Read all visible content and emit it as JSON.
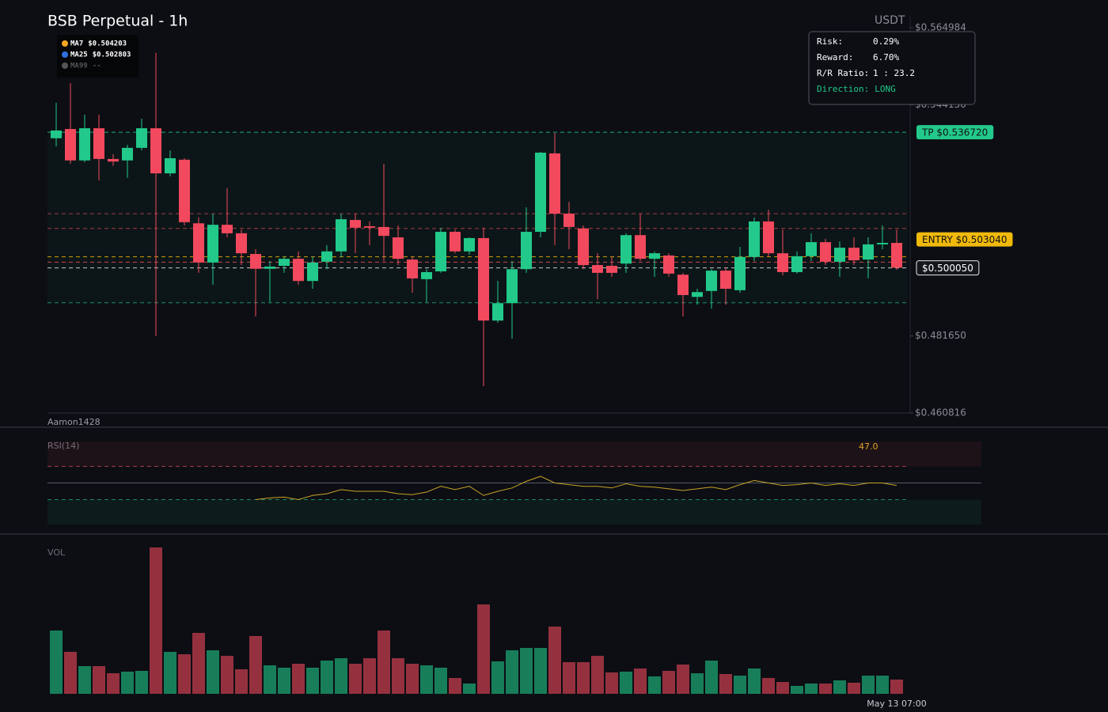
{
  "chart_data": [
    {
      "type": "candlestick",
      "title": "BSB Perpetual - 1h",
      "unit": "USDT",
      "watermark": "Aamon1428",
      "up_color": "#22c98a",
      "down_color": "#f2495e",
      "ylim": [
        0.460816,
        0.5682
      ],
      "yticks": [
        {
          "value": 0.564984,
          "label": "$0.564984"
        },
        {
          "value": 0.54415,
          "label": "$0.544150"
        },
        {
          "value": 0.48165,
          "label": "$0.481650"
        },
        {
          "value": 0.460816,
          "label": "$0.460816"
        }
      ],
      "grid": false,
      "open": [
        0.5351,
        0.5376,
        0.5291,
        0.5378,
        0.5295,
        0.5291,
        0.5325,
        0.5378,
        0.5256,
        0.5293,
        0.5121,
        0.5015,
        0.5117,
        0.5094,
        0.5038,
        0.4998,
        0.5006,
        0.5025,
        0.4965,
        0.5017,
        0.5045,
        0.513,
        0.5113,
        0.5111,
        0.5083,
        0.5023,
        0.497,
        0.4991,
        0.5098,
        0.5045,
        0.5081,
        0.4858,
        0.4905,
        0.4997,
        0.5098,
        0.531,
        0.5147,
        0.5107,
        0.5008,
        0.5006,
        0.5012,
        0.5089,
        0.5025,
        0.5034,
        0.4982,
        0.4922,
        0.4938,
        0.4993,
        0.494,
        0.503,
        0.5126,
        0.504,
        0.4989,
        0.5032,
        0.507,
        0.5017,
        0.5055,
        0.5023,
        0.5064,
        0.5068
      ],
      "high": [
        0.5447,
        0.55,
        0.5415,
        0.5415,
        0.5308,
        0.5333,
        0.5404,
        0.5582,
        0.5318,
        0.5297,
        0.5137,
        0.5147,
        0.5216,
        0.5104,
        0.5051,
        0.5019,
        0.503,
        0.5045,
        0.503,
        0.5062,
        0.5147,
        0.5147,
        0.5126,
        0.5282,
        0.5115,
        0.503,
        0.4997,
        0.5109,
        0.5104,
        0.5083,
        0.5109,
        0.4965,
        0.5019,
        0.5164,
        0.5314,
        0.5365,
        0.5179,
        0.5115,
        0.504,
        0.503,
        0.5094,
        0.5147,
        0.5045,
        0.504,
        0.4987,
        0.4944,
        0.4997,
        0.5002,
        0.5057,
        0.5137,
        0.5158,
        0.5104,
        0.5045,
        0.5094,
        0.5079,
        0.5072,
        0.5083,
        0.5083,
        0.5115,
        0.5104
      ],
      "low": [
        0.5329,
        0.5282,
        0.5286,
        0.5237,
        0.5276,
        0.5244,
        0.5318,
        0.4816,
        0.5248,
        0.5115,
        0.4987,
        0.4955,
        0.5083,
        0.5008,
        0.4869,
        0.4908,
        0.4987,
        0.4955,
        0.4944,
        0.4997,
        0.503,
        0.504,
        0.5062,
        0.5019,
        0.5008,
        0.4933,
        0.4908,
        0.4987,
        0.504,
        0.5036,
        0.4681,
        0.4852,
        0.4809,
        0.4987,
        0.5083,
        0.5062,
        0.5051,
        0.4997,
        0.4916,
        0.4976,
        0.4987,
        0.5019,
        0.4976,
        0.4976,
        0.4869,
        0.4901,
        0.489,
        0.4901,
        0.4933,
        0.5019,
        0.503,
        0.498,
        0.4985,
        0.5019,
        0.5008,
        0.4976,
        0.5008,
        0.4972,
        0.5051,
        0.4995
      ],
      "close": [
        0.5372,
        0.5291,
        0.5378,
        0.5295,
        0.5288,
        0.5325,
        0.5378,
        0.5256,
        0.5297,
        0.5124,
        0.5015,
        0.5117,
        0.5094,
        0.504,
        0.4998,
        0.5004,
        0.5025,
        0.4965,
        0.5015,
        0.5045,
        0.5132,
        0.5109,
        0.5109,
        0.5087,
        0.5025,
        0.4972,
        0.4989,
        0.5098,
        0.5045,
        0.5081,
        0.4858,
        0.4905,
        0.4997,
        0.5098,
        0.5312,
        0.5147,
        0.5111,
        0.5008,
        0.4987,
        0.4987,
        0.5089,
        0.5025,
        0.504,
        0.4985,
        0.4927,
        0.4935,
        0.4993,
        0.4944,
        0.503,
        0.5126,
        0.504,
        0.4989,
        0.5032,
        0.507,
        0.5017,
        0.5055,
        0.5021,
        0.5064,
        0.5068,
        0.5001
      ],
      "levels": [
        {
          "value": 0.53672,
          "color": "#22c98a",
          "label": "TP $0.536720",
          "label_box": "filled"
        },
        {
          "value": 0.5147,
          "color": "#c2404f"
        },
        {
          "value": 0.5107,
          "color": "#c2404f"
        },
        {
          "value": 0.50304,
          "color": "#f0b90b",
          "label": "ENTRY $0.503040",
          "label_box": "filled"
        },
        {
          "value": 0.50158,
          "color": "#f2495e"
        },
        {
          "value": 0.50005,
          "color": "#e8e8e8",
          "label": "$0.500050",
          "label_box": "outline"
        },
        {
          "value": 0.4906,
          "color": "#1fa877"
        }
      ],
      "indicators": [
        {
          "name": "MA7",
          "value_label": "$0.504203",
          "color": "#f5a623"
        },
        {
          "name": "MA25",
          "value_label": "$0.502803",
          "color": "#2f6fe0"
        },
        {
          "name": "MA99",
          "value_label": "--",
          "color": "#555555"
        }
      ],
      "info": [
        {
          "label": "Risk:",
          "value": "0.29%"
        },
        {
          "label": "Reward:",
          "value": "6.70%"
        },
        {
          "label": "R/R Ratio:",
          "value": "1 : 23.2"
        },
        {
          "label": "Direction:",
          "value": "LONG",
          "color": "#22c98a"
        }
      ]
    },
    {
      "type": "line",
      "title": "RSI(14)",
      "color": "#c9a227",
      "ylim": [
        0,
        100
      ],
      "levels": [
        70,
        50,
        30
      ],
      "values": [
        null,
        null,
        null,
        null,
        null,
        null,
        null,
        null,
        null,
        null,
        null,
        null,
        null,
        null,
        30,
        32,
        33,
        30,
        35,
        37,
        42,
        40,
        40,
        40,
        37,
        36,
        39,
        46,
        42,
        46,
        35,
        40,
        44,
        52,
        58,
        50,
        48,
        46,
        46,
        44,
        49,
        46,
        45,
        43,
        41,
        43,
        45,
        42,
        48,
        53,
        50,
        47,
        48,
        50,
        47,
        49,
        47,
        50,
        50,
        47
      ],
      "value_labels": [
        null,
        null,
        null,
        null,
        null,
        null,
        null,
        null,
        null,
        null,
        null,
        null,
        null,
        null,
        null,
        null,
        null,
        null,
        null,
        null,
        null,
        null,
        null,
        null,
        null,
        null,
        null,
        null,
        null,
        null,
        null,
        null,
        null,
        null,
        null,
        null,
        null,
        null,
        null,
        null,
        null,
        null,
        null,
        null,
        null,
        null,
        null,
        null,
        null,
        null,
        null,
        null,
        null,
        null,
        null,
        null,
        null,
        null,
        null,
        "47.0"
      ]
    },
    {
      "type": "bar",
      "title": "VOL",
      "ylim": [
        0,
        187
      ],
      "values": [
        80,
        53,
        35,
        35,
        26,
        28,
        29,
        185,
        53,
        50,
        77,
        55,
        48,
        31,
        73,
        36,
        33,
        38,
        33,
        42,
        45,
        38,
        45,
        80,
        45,
        38,
        36,
        33,
        20,
        13,
        113,
        41,
        55,
        58,
        58,
        85,
        40,
        40,
        48,
        27,
        28,
        32,
        22,
        29,
        37,
        26,
        42,
        25,
        23,
        32,
        20,
        15,
        10,
        13,
        13,
        17,
        14,
        23,
        23,
        18
      ],
      "categories": [
        null,
        null,
        null,
        null,
        null,
        null,
        null,
        null,
        null,
        null,
        null,
        null,
        null,
        null,
        null,
        null,
        null,
        null,
        null,
        null,
        null,
        null,
        null,
        null,
        null,
        null,
        null,
        null,
        null,
        null,
        null,
        null,
        null,
        null,
        null,
        null,
        null,
        null,
        null,
        null,
        null,
        null,
        null,
        null,
        null,
        null,
        null,
        null,
        null,
        null,
        null,
        null,
        null,
        null,
        null,
        null,
        null,
        null,
        null,
        "May 13 07:00"
      ]
    }
  ]
}
